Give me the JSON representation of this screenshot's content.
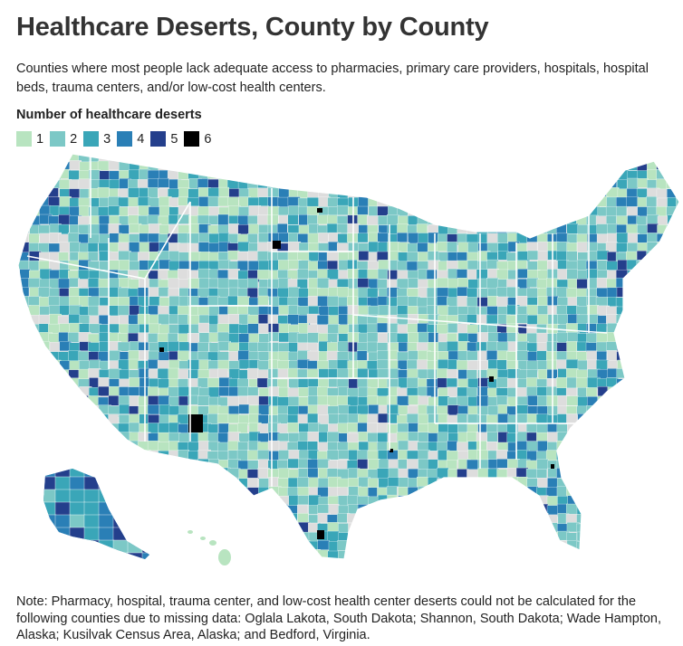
{
  "title": "Healthcare Deserts, County by County",
  "subtitle": "Counties where most people lack adequate access to pharmacies, primary care providers, hospitals, hospital beds, trauma centers, and/or low-cost health centers.",
  "legend": {
    "title": "Number of healthcare deserts",
    "items": [
      {
        "label": "1",
        "color": "#b8e4c0"
      },
      {
        "label": "2",
        "color": "#7cc8c6"
      },
      {
        "label": "3",
        "color": "#3aa6b8"
      },
      {
        "label": "4",
        "color": "#2a7fb6"
      },
      {
        "label": "5",
        "color": "#243f8c"
      },
      {
        "label": "6",
        "color": "#000000"
      }
    ]
  },
  "no_data_color": "#dddddd",
  "note": {
    "line1": "Note: Pharmacy, hospital, trauma center, and low-cost health center deserts could not be calculated for the",
    "line2": "following counties due to missing data: Oglala Lakota, South Dakota; Shannon, South Dakota; Wade Hampton,",
    "line3": "Alaska; Kusilvak Census Area, Alaska; and Bedford, Virginia."
  }
}
